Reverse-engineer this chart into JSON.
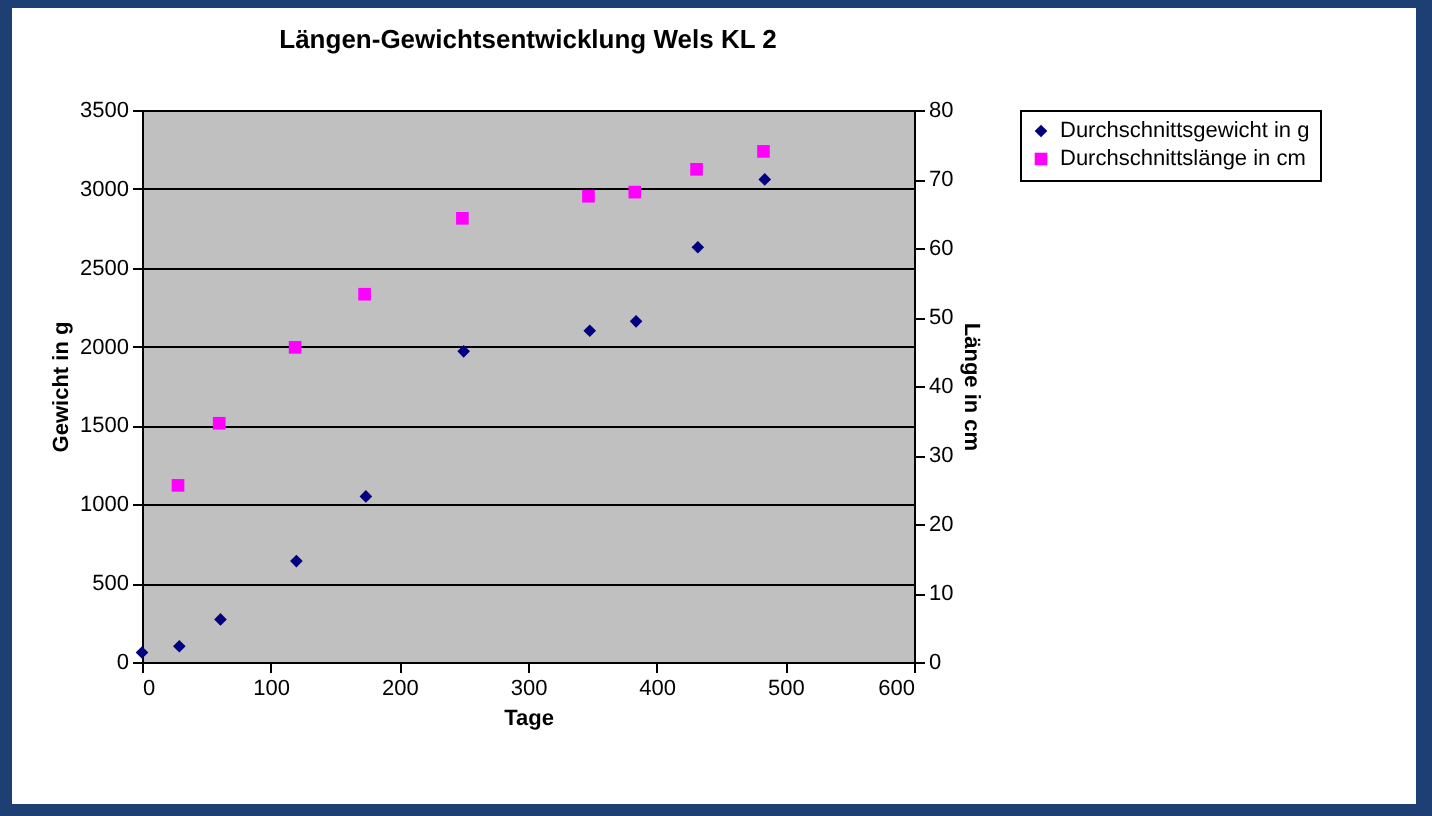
{
  "chart_data": {
    "type": "scatter",
    "title": "Längen-Gewichtsentwicklung Wels KL 2",
    "xlabel": "Tage",
    "ylabel": "Gewicht in g",
    "y2label": "Länge in cm",
    "series": [
      {
        "name": "Durchschnittsgewicht in g",
        "color": "#000080",
        "marker": "diamond",
        "x": [
          0,
          29,
          61,
          120,
          174,
          250,
          348,
          384,
          432,
          484
        ],
        "values": [
          60,
          100,
          270,
          640,
          1050,
          1970,
          2100,
          2160,
          2630,
          3060
        ]
      },
      {
        "name": "Durchschnittslänge in cm",
        "color": "#ff00ff",
        "marker": "square",
        "axis": "y2",
        "x": [
          28,
          60,
          119,
          173,
          249,
          347,
          383,
          431,
          483
        ],
        "values": [
          25.6,
          34.6,
          45.6,
          53.3,
          64.3,
          67.5,
          68.1,
          71.4,
          74.0
        ]
      }
    ],
    "xlim": [
      0,
      600
    ],
    "xticks": [
      0,
      100,
      200,
      300,
      400,
      500,
      600
    ],
    "ylim": [
      0,
      3500
    ],
    "yticks": [
      0,
      500,
      1000,
      1500,
      2000,
      2500,
      3000,
      3500
    ],
    "y2lim": [
      0,
      80
    ],
    "y2ticks": [
      0,
      10,
      20,
      30,
      40,
      50,
      60,
      70,
      80
    ],
    "grid": "y",
    "legend": "right"
  }
}
